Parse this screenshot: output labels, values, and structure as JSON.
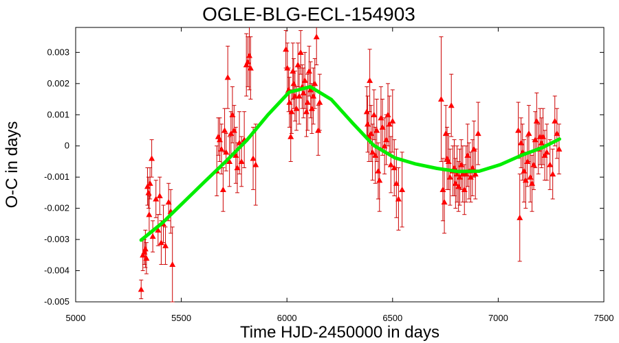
{
  "chart_data": {
    "type": "scatter",
    "title": "OGLE-BLG-ECL-154903",
    "xlabel": "Time HJD-2450000 in days",
    "ylabel": "O-C in days",
    "xlim": [
      5000,
      7500
    ],
    "ylim": [
      -0.005,
      0.0038
    ],
    "xticks": [
      5000,
      5500,
      6000,
      6500,
      7000,
      7500
    ],
    "yticks": [
      -0.005,
      -0.004,
      -0.003,
      -0.002,
      -0.001,
      0,
      0.001,
      0.002,
      0.003
    ],
    "xtick_labels": [
      "5000",
      "5500",
      "6000",
      "6500",
      "7000",
      "7500"
    ],
    "ytick_labels": [
      "-0.005",
      "-0.004",
      "-0.003",
      "-0.002",
      "-0.001",
      "0",
      "0.001",
      "0.002",
      "0.003"
    ],
    "grid": false,
    "series": [
      {
        "marker": "triangle",
        "color": "#ff0000",
        "errorbar_color": "#cc0000",
        "points": [
          {
            "x": 5310,
            "y": -0.0046,
            "err": 0.0003
          },
          {
            "x": 5318,
            "y": -0.0035,
            "err": 0.0005
          },
          {
            "x": 5325,
            "y": -0.0034,
            "err": 0.0004
          },
          {
            "x": 5330,
            "y": -0.0033,
            "err": 0.0006
          },
          {
            "x": 5335,
            "y": -0.0036,
            "err": 0.0005
          },
          {
            "x": 5340,
            "y": -0.0013,
            "err": 0.0006
          },
          {
            "x": 5345,
            "y": -0.0015,
            "err": 0.0005
          },
          {
            "x": 5348,
            "y": -0.0022,
            "err": 0.0006
          },
          {
            "x": 5352,
            "y": -0.0012,
            "err": 0.0005
          },
          {
            "x": 5360,
            "y": -0.0004,
            "err": 0.0006
          },
          {
            "x": 5365,
            "y": -0.0029,
            "err": 0.0005
          },
          {
            "x": 5380,
            "y": -0.0017,
            "err": 0.0006
          },
          {
            "x": 5390,
            "y": -0.0027,
            "err": 0.0005
          },
          {
            "x": 5398,
            "y": -0.0016,
            "err": 0.0006
          },
          {
            "x": 5405,
            "y": -0.0031,
            "err": 0.0007
          },
          {
            "x": 5415,
            "y": -0.0025,
            "err": 0.0006
          },
          {
            "x": 5425,
            "y": -0.0032,
            "err": 0.0006
          },
          {
            "x": 5440,
            "y": -0.0018,
            "err": 0.0006
          },
          {
            "x": 5450,
            "y": -0.0021,
            "err": 0.0007
          },
          {
            "x": 5458,
            "y": -0.0038,
            "err": 0.0012
          },
          {
            "x": 5668,
            "y": -0.0008,
            "err": 0.0008
          },
          {
            "x": 5675,
            "y": 0.0003,
            "err": 0.0006
          },
          {
            "x": 5682,
            "y": 0.0002,
            "err": 0.0007
          },
          {
            "x": 5690,
            "y": -0.0001,
            "err": 0.0008
          },
          {
            "x": 5698,
            "y": -0.0014,
            "err": 0.0007
          },
          {
            "x": 5705,
            "y": 0.0005,
            "err": 0.0007
          },
          {
            "x": 5712,
            "y": -0.0002,
            "err": 0.0006
          },
          {
            "x": 5720,
            "y": 0.0022,
            "err": 0.001
          },
          {
            "x": 5728,
            "y": -0.0005,
            "err": 0.0008
          },
          {
            "x": 5735,
            "y": 0.0004,
            "err": 0.0007
          },
          {
            "x": 5742,
            "y": 0.001,
            "err": 0.0009
          },
          {
            "x": 5750,
            "y": 0.0005,
            "err": 0.0008
          },
          {
            "x": 5758,
            "y": -0.0003,
            "err": 0.0009
          },
          {
            "x": 5765,
            "y": -0.0007,
            "err": 0.0008
          },
          {
            "x": 5775,
            "y": 0.0001,
            "err": 0.001
          },
          {
            "x": 5785,
            "y": -0.0005,
            "err": 0.0008
          },
          {
            "x": 5798,
            "y": 0.0002,
            "err": 0.0009
          },
          {
            "x": 5808,
            "y": 0.0026,
            "err": 0.001
          },
          {
            "x": 5815,
            "y": 0.0027,
            "err": 0.0008
          },
          {
            "x": 5822,
            "y": 0.0029,
            "err": 0.0011
          },
          {
            "x": 5828,
            "y": 0.0025,
            "err": 0.001
          },
          {
            "x": 5840,
            "y": -0.0004,
            "err": 0.001
          },
          {
            "x": 5852,
            "y": -0.0006,
            "err": 0.0013
          },
          {
            "x": 5995,
            "y": 0.0031,
            "err": 0.0006
          },
          {
            "x": 6002,
            "y": 0.0025,
            "err": 0.0008
          },
          {
            "x": 6008,
            "y": 0.0018,
            "err": 0.0007
          },
          {
            "x": 6012,
            "y": 0.0014,
            "err": 0.0008
          },
          {
            "x": 6018,
            "y": 0.0003,
            "err": 0.0008
          },
          {
            "x": 6022,
            "y": 0.0011,
            "err": 0.0007
          },
          {
            "x": 6028,
            "y": 0.0024,
            "err": 0.0009
          },
          {
            "x": 6032,
            "y": 0.002,
            "err": 0.0008
          },
          {
            "x": 6038,
            "y": 0.0016,
            "err": 0.0008
          },
          {
            "x": 6045,
            "y": 0.0012,
            "err": 0.0007
          },
          {
            "x": 6052,
            "y": 0.0026,
            "err": 0.0007
          },
          {
            "x": 6058,
            "y": 0.0016,
            "err": 0.0009
          },
          {
            "x": 6065,
            "y": 0.003,
            "err": 0.0007
          },
          {
            "x": 6072,
            "y": 0.0019,
            "err": 0.0007
          },
          {
            "x": 6078,
            "y": 0.0017,
            "err": 0.0008
          },
          {
            "x": 6085,
            "y": 0.0021,
            "err": 0.0009
          },
          {
            "x": 6092,
            "y": 0.0011,
            "err": 0.0008
          },
          {
            "x": 6098,
            "y": 0.0014,
            "err": 0.0009
          },
          {
            "x": 6105,
            "y": 0.0024,
            "err": 0.0008
          },
          {
            "x": 6112,
            "y": 0.0018,
            "err": 0.0009
          },
          {
            "x": 6118,
            "y": 0.0012,
            "err": 0.0008
          },
          {
            "x": 6125,
            "y": 0.0016,
            "err": 0.0009
          },
          {
            "x": 6132,
            "y": 0.002,
            "err": 0.0008
          },
          {
            "x": 6140,
            "y": 0.0035,
            "err": 0.0009
          },
          {
            "x": 6148,
            "y": 0.0005,
            "err": 0.0008
          },
          {
            "x": 6155,
            "y": 0.0014,
            "err": 0.0009
          },
          {
            "x": 6378,
            "y": 0.0011,
            "err": 0.0008
          },
          {
            "x": 6382,
            "y": 0.0007,
            "err": 0.0009
          },
          {
            "x": 6388,
            "y": 0.0003,
            "err": 0.0008
          },
          {
            "x": 6392,
            "y": 0.0021,
            "err": 0.001
          },
          {
            "x": 6398,
            "y": 0.0004,
            "err": 0.0009
          },
          {
            "x": 6405,
            "y": -0.0002,
            "err": 0.0009
          },
          {
            "x": 6412,
            "y": 0.001,
            "err": 0.0008
          },
          {
            "x": 6418,
            "y": -0.0003,
            "err": 0.0009
          },
          {
            "x": 6425,
            "y": 0.0005,
            "err": 0.001
          },
          {
            "x": 6432,
            "y": -0.0008,
            "err": 0.0009
          },
          {
            "x": 6438,
            "y": -0.0011,
            "err": 0.001
          },
          {
            "x": 6445,
            "y": 0.0009,
            "err": 0.001
          },
          {
            "x": 6452,
            "y": 0.0006,
            "err": 0.0009
          },
          {
            "x": 6462,
            "y": 0.0,
            "err": 0.0009
          },
          {
            "x": 6470,
            "y": 0.0002,
            "err": 0.0008
          },
          {
            "x": 6478,
            "y": 0.001,
            "err": 0.001
          },
          {
            "x": 6485,
            "y": 0.0007,
            "err": 0.0009
          },
          {
            "x": 6492,
            "y": -0.0006,
            "err": 0.0009
          },
          {
            "x": 6500,
            "y": 0.0008,
            "err": 0.001
          },
          {
            "x": 6508,
            "y": -0.0007,
            "err": 0.0009
          },
          {
            "x": 6518,
            "y": -0.0012,
            "err": 0.0011
          },
          {
            "x": 6528,
            "y": -0.0017,
            "err": 0.001
          },
          {
            "x": 6545,
            "y": -0.0014,
            "err": 0.0012
          },
          {
            "x": 6730,
            "y": 0.0015,
            "err": 0.002
          },
          {
            "x": 6738,
            "y": -0.0014,
            "err": 0.001
          },
          {
            "x": 6745,
            "y": -0.0018,
            "err": 0.001
          },
          {
            "x": 6752,
            "y": 0.0004,
            "err": 0.0009
          },
          {
            "x": 6758,
            "y": -0.0004,
            "err": 0.001
          },
          {
            "x": 6765,
            "y": -0.0005,
            "err": 0.0009
          },
          {
            "x": 6772,
            "y": -0.001,
            "err": 0.0009
          },
          {
            "x": 6778,
            "y": 0.0013,
            "err": 0.001
          },
          {
            "x": 6785,
            "y": -0.0008,
            "err": 0.0008
          },
          {
            "x": 6792,
            "y": -0.0007,
            "err": 0.0009
          },
          {
            "x": 6798,
            "y": -0.0012,
            "err": 0.0008
          },
          {
            "x": 6805,
            "y": -0.0009,
            "err": 0.0009
          },
          {
            "x": 6812,
            "y": -0.0013,
            "err": 0.0008
          },
          {
            "x": 6818,
            "y": -0.001,
            "err": 0.0009
          },
          {
            "x": 6825,
            "y": -0.0006,
            "err": 0.0008
          },
          {
            "x": 6832,
            "y": -0.0009,
            "err": 0.0009
          },
          {
            "x": 6840,
            "y": -0.0014,
            "err": 0.0008
          },
          {
            "x": 6848,
            "y": -0.0009,
            "err": 0.0009
          },
          {
            "x": 6855,
            "y": -0.0003,
            "err": 0.001
          },
          {
            "x": 6862,
            "y": -0.0008,
            "err": 0.0009
          },
          {
            "x": 6870,
            "y": -0.001,
            "err": 0.0008
          },
          {
            "x": 6878,
            "y": -0.0007,
            "err": 0.0009
          },
          {
            "x": 6885,
            "y": -0.0001,
            "err": 0.0009
          },
          {
            "x": 6892,
            "y": -0.0009,
            "err": 0.0008
          },
          {
            "x": 6905,
            "y": 0.0004,
            "err": 0.001
          },
          {
            "x": 7095,
            "y": 0.0005,
            "err": 0.0009
          },
          {
            "x": 7102,
            "y": -0.0023,
            "err": 0.0014
          },
          {
            "x": 7108,
            "y": 0.0001,
            "err": 0.0008
          },
          {
            "x": 7115,
            "y": -0.0002,
            "err": 0.0009
          },
          {
            "x": 7122,
            "y": -0.0008,
            "err": 0.001
          },
          {
            "x": 7130,
            "y": -0.0011,
            "err": 0.0009
          },
          {
            "x": 7138,
            "y": -0.0005,
            "err": 0.0008
          },
          {
            "x": 7145,
            "y": 0.0004,
            "err": 0.0009
          },
          {
            "x": 7152,
            "y": -0.001,
            "err": 0.0008
          },
          {
            "x": 7160,
            "y": -0.0012,
            "err": 0.0009
          },
          {
            "x": 7168,
            "y": -0.0006,
            "err": 0.0008
          },
          {
            "x": 7175,
            "y": 0.0002,
            "err": 0.0009
          },
          {
            "x": 7182,
            "y": 0.0008,
            "err": 0.0009
          },
          {
            "x": 7190,
            "y": -0.0001,
            "err": 0.0008
          },
          {
            "x": 7198,
            "y": 0.0003,
            "err": 0.0009
          },
          {
            "x": 7205,
            "y": 0.0001,
            "err": 0.0008
          },
          {
            "x": 7212,
            "y": 0.0003,
            "err": 0.0009
          },
          {
            "x": 7220,
            "y": -0.0003,
            "err": 0.0008
          },
          {
            "x": 7230,
            "y": -0.0002,
            "err": 0.0009
          },
          {
            "x": 7245,
            "y": -0.0006,
            "err": 0.0008
          },
          {
            "x": 7258,
            "y": -0.0009,
            "err": 0.0008
          },
          {
            "x": 7268,
            "y": 0.0008,
            "err": 0.0008
          },
          {
            "x": 7278,
            "y": 0.0004,
            "err": 0.0008
          },
          {
            "x": 7288,
            "y": -0.0001,
            "err": 0.0008
          }
        ]
      },
      {
        "type": "line",
        "color": "#00ee00",
        "x": [
          5310,
          5410,
          5510,
          5610,
          5710,
          5810,
          5910,
          6010,
          6110,
          6210,
          6310,
          6410,
          6510,
          6610,
          6710,
          6810,
          6910,
          7010,
          7110,
          7210,
          7290
        ],
        "y": [
          -0.00302,
          -0.00247,
          -0.00181,
          -0.00115,
          -0.0005,
          0.00018,
          0.001,
          0.00172,
          0.0019,
          0.00149,
          0.00074,
          2e-05,
          -0.00038,
          -0.00058,
          -0.00072,
          -0.00082,
          -0.00081,
          -0.0006,
          -0.0003,
          -5e-05,
          0.00022
        ]
      }
    ]
  }
}
